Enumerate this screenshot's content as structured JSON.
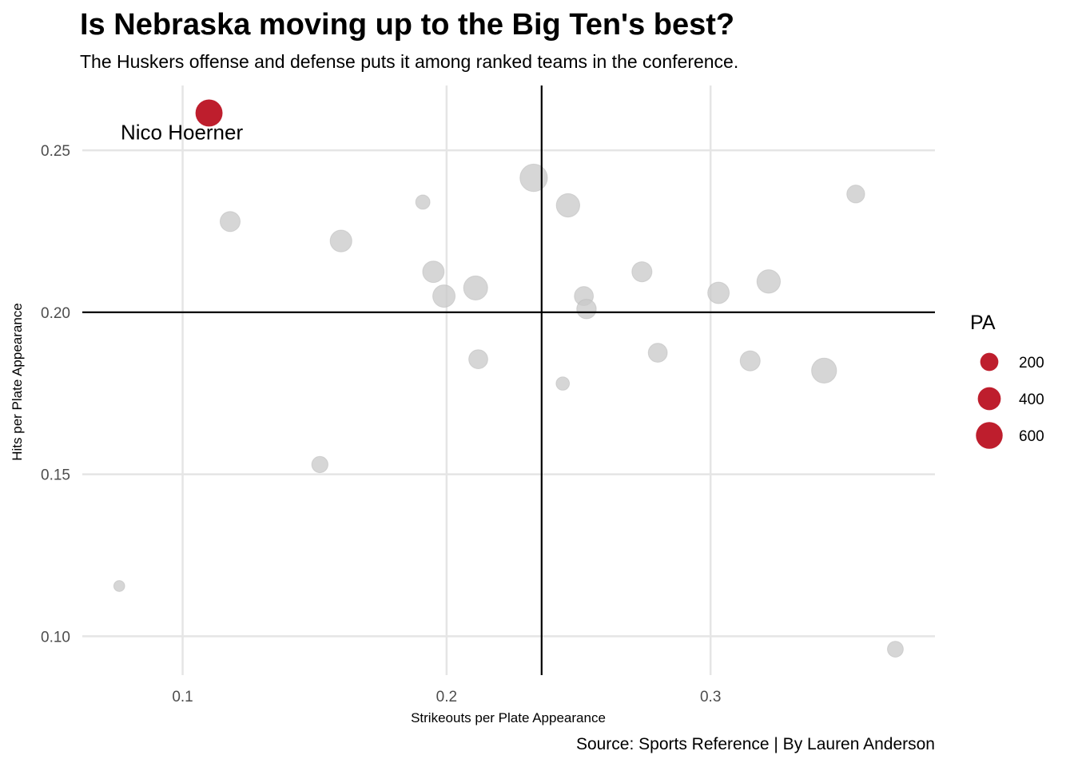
{
  "header": {
    "title": "Is Nebraska moving up to the Big Ten's best?",
    "subtitle": "The Huskers offense and defense puts it among ranked teams in the conference."
  },
  "caption": "Source: Sports Reference | By Lauren Anderson",
  "colors": {
    "highlight": "#be1e2d",
    "other_points": "#c8c8c8",
    "gridline": "#e5e5e5",
    "reference_lines": "#000000"
  },
  "chart_data": {
    "type": "scatter",
    "xlabel": "Strikeouts per Plate Appearance",
    "ylabel": "Hits per Plate Appearance",
    "xlim": [
      0.062,
      0.385
    ],
    "ylim": [
      0.088,
      0.27
    ],
    "x_ticks": [
      0.1,
      0.2,
      0.3
    ],
    "x_tick_labels": [
      "0.1",
      "0.2",
      "0.3"
    ],
    "y_ticks": [
      0.1,
      0.15,
      0.2,
      0.25
    ],
    "y_tick_labels": [
      "0.10",
      "0.15",
      "0.20",
      "0.25"
    ],
    "grid": true,
    "reference_lines": {
      "x": 0.236,
      "y": 0.2
    },
    "size_legend": {
      "title": "PA",
      "position": "right",
      "values": [
        200,
        400,
        600
      ],
      "labels": [
        "200",
        "400",
        "600"
      ]
    },
    "highlight": {
      "name": "Nico Hoerner",
      "x": 0.11,
      "y": 0.2615,
      "pa": 620
    },
    "points": [
      {
        "x": 0.118,
        "y": 0.228,
        "pa": 270
      },
      {
        "x": 0.16,
        "y": 0.222,
        "pa": 340
      },
      {
        "x": 0.191,
        "y": 0.234,
        "pa": 90
      },
      {
        "x": 0.233,
        "y": 0.2415,
        "pa": 640
      },
      {
        "x": 0.246,
        "y": 0.233,
        "pa": 420
      },
      {
        "x": 0.355,
        "y": 0.2365,
        "pa": 190
      },
      {
        "x": 0.195,
        "y": 0.2125,
        "pa": 330
      },
      {
        "x": 0.199,
        "y": 0.205,
        "pa": 370
      },
      {
        "x": 0.211,
        "y": 0.2075,
        "pa": 450
      },
      {
        "x": 0.252,
        "y": 0.205,
        "pa": 230
      },
      {
        "x": 0.253,
        "y": 0.201,
        "pa": 250
      },
      {
        "x": 0.274,
        "y": 0.2125,
        "pa": 270
      },
      {
        "x": 0.303,
        "y": 0.206,
        "pa": 330
      },
      {
        "x": 0.322,
        "y": 0.2095,
        "pa": 420
      },
      {
        "x": 0.212,
        "y": 0.1855,
        "pa": 230
      },
      {
        "x": 0.244,
        "y": 0.178,
        "pa": 70
      },
      {
        "x": 0.28,
        "y": 0.1875,
        "pa": 230
      },
      {
        "x": 0.315,
        "y": 0.185,
        "pa": 270
      },
      {
        "x": 0.343,
        "y": 0.182,
        "pa": 500
      },
      {
        "x": 0.152,
        "y": 0.153,
        "pa": 140
      },
      {
        "x": 0.076,
        "y": 0.1155,
        "pa": 30
      },
      {
        "x": 0.37,
        "y": 0.096,
        "pa": 130
      }
    ]
  }
}
